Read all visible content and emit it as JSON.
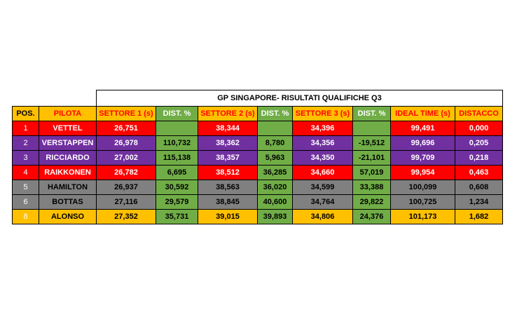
{
  "table": {
    "title": "GP SINGAPORE- RISULTATI QUALIFICHE Q3",
    "headers": [
      "POS.",
      "PILOTA",
      "SETTORE 1 (s)",
      "DIST. %",
      "SETTORE 2 (s)",
      "DIST. %",
      "SETTORE 3 (s)",
      "DIST. %",
      "IDEAL TIME (s)",
      "DISTACCO"
    ],
    "colors": {
      "red": "#ff0000",
      "purple": "#7030a0",
      "gray": "#808080",
      "orange": "#ffc000",
      "green": "#70ad47"
    },
    "rows": [
      {
        "pos": "1",
        "pilota": "VETTEL",
        "s1": "26,751",
        "d1": "",
        "s2": "38,344",
        "d2": "",
        "s3": "34,396",
        "d3": "",
        "ideal": "99,491",
        "distacco": "0,000",
        "color": "red"
      },
      {
        "pos": "2",
        "pilota": "VERSTAPPEN",
        "s1": "26,978",
        "d1": "110,732",
        "s2": "38,362",
        "d2": "8,780",
        "s3": "34,356",
        "d3": "-19,512",
        "ideal": "99,696",
        "distacco": "0,205",
        "color": "purple"
      },
      {
        "pos": "3",
        "pilota": "RICCIARDO",
        "s1": "27,002",
        "d1": "115,138",
        "s2": "38,357",
        "d2": "5,963",
        "s3": "34,350",
        "d3": "-21,101",
        "ideal": "99,709",
        "distacco": "0,218",
        "color": "purple"
      },
      {
        "pos": "4",
        "pilota": "RAIKKONEN",
        "s1": "26,782",
        "d1": "6,695",
        "s2": "38,512",
        "d2": "36,285",
        "s3": "34,660",
        "d3": "57,019",
        "ideal": "99,954",
        "distacco": "0,463",
        "color": "red"
      },
      {
        "pos": "5",
        "pilota": "HAMILTON",
        "s1": "26,937",
        "d1": "30,592",
        "s2": "38,563",
        "d2": "36,020",
        "s3": "34,599",
        "d3": "33,388",
        "ideal": "100,099",
        "distacco": "0,608",
        "color": "gray"
      },
      {
        "pos": "6",
        "pilota": "BOTTAS",
        "s1": "27,116",
        "d1": "29,579",
        "s2": "38,845",
        "d2": "40,600",
        "s3": "34,764",
        "d3": "29,822",
        "ideal": "100,725",
        "distacco": "1,234",
        "color": "gray"
      },
      {
        "pos": "8",
        "pilota": "ALONSO",
        "s1": "27,352",
        "d1": "35,731",
        "s2": "39,015",
        "d2": "39,893",
        "s3": "34,806",
        "d3": "24,376",
        "ideal": "101,173",
        "distacco": "1,682",
        "color": "orange"
      }
    ]
  }
}
